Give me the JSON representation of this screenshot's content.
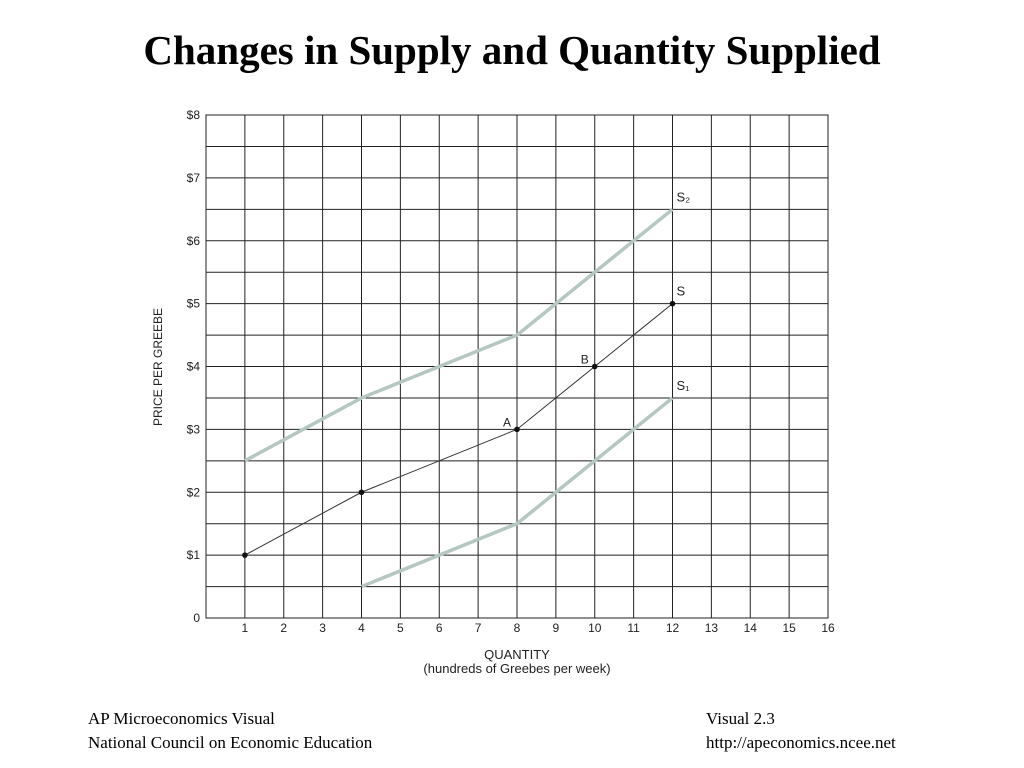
{
  "chart_data": {
    "type": "line",
    "title": "Changes in Supply and Quantity Supplied",
    "x_label": "QUANTITY",
    "x_sublabel": "(hundreds of Greebes per week)",
    "y_label": "PRICE PER GREEBE",
    "xlim": [
      0,
      16
    ],
    "xticks": [
      1,
      2,
      3,
      4,
      5,
      6,
      7,
      8,
      9,
      10,
      11,
      12,
      13,
      14,
      15,
      16
    ],
    "ylim": [
      0,
      8
    ],
    "yticks": [
      0,
      {
        "value": 1,
        "label": "$1"
      },
      {
        "value": 2,
        "label": "$2"
      },
      {
        "value": 3,
        "label": "$3"
      },
      {
        "value": 4,
        "label": "$4"
      },
      {
        "value": 5,
        "label": "$5"
      },
      {
        "value": 6,
        "label": "$6"
      },
      {
        "value": 7,
        "label": "$7"
      },
      {
        "value": 8,
        "label": "$8"
      }
    ],
    "y_minor_grid": [
      0.5,
      1.5,
      2.5,
      3.5,
      4.5,
      5.5,
      6.5,
      7.5
    ],
    "grid": true,
    "series": [
      {
        "name": "S₂",
        "color": "#b5c7c2",
        "x": [
          1,
          4,
          8,
          12
        ],
        "values": [
          2.5,
          3.5,
          4.5,
          6.5
        ]
      },
      {
        "name": "S",
        "color": "#333333",
        "x": [
          1,
          4,
          8,
          10,
          12
        ],
        "values": [
          1,
          2,
          3,
          4,
          5
        ],
        "markers": true
      },
      {
        "name": "S₁",
        "color": "#b5c7c2",
        "x": [
          4,
          8,
          12
        ],
        "values": [
          0.5,
          1.5,
          3.5
        ]
      }
    ],
    "points": [
      {
        "label": "A",
        "x": 8,
        "y": 3
      },
      {
        "label": "B",
        "x": 10,
        "y": 4
      }
    ]
  },
  "footer": {
    "left": [
      "AP Microeconomics Visual",
      "National Council on Economic Education"
    ],
    "right": [
      "Visual 2.3",
      "http://apeconomics.ncee.net"
    ]
  }
}
